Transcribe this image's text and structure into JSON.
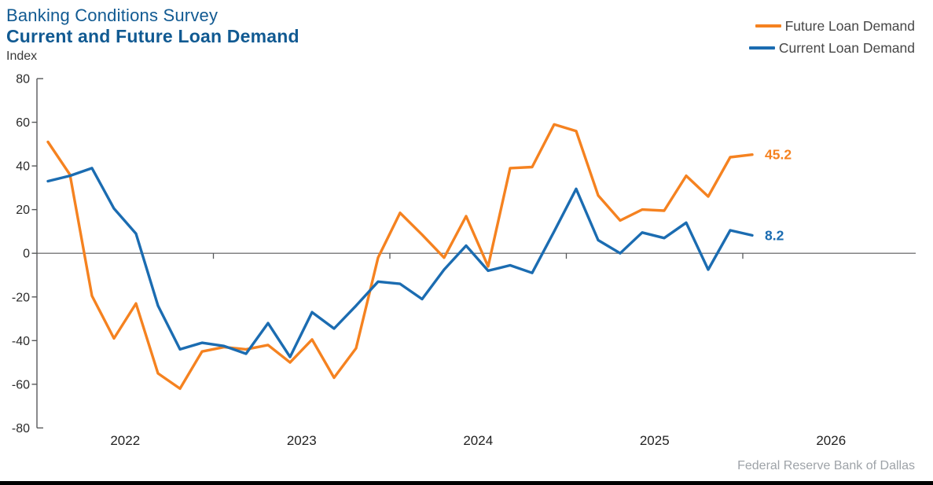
{
  "header": {
    "title": "Banking Conditions Survey",
    "subtitle": "Current and Future Loan Demand",
    "unit_label": "Index"
  },
  "legend": {
    "items": [
      {
        "label": "Future Loan Demand",
        "color": "#f58220"
      },
      {
        "label": "Current Loan Demand",
        "color": "#1b6cb1"
      }
    ]
  },
  "footer": {
    "source": "Federal Reserve Bank of Dallas"
  },
  "colors": {
    "title": "#115a92",
    "axis": "#58595b",
    "footer_text": "#9ea3a8",
    "future_series": "#f58220",
    "current_series": "#1b6cb1"
  },
  "chart_data": {
    "type": "line",
    "title": "Banking Conditions Survey",
    "subtitle": "Current and Future Loan Demand",
    "ylabel": "Index",
    "ylim": [
      -80,
      80
    ],
    "ytick_step": 20,
    "y_ticks": [
      80,
      60,
      40,
      20,
      0,
      -20,
      -40,
      -60,
      -80
    ],
    "x_tick_labels": [
      "2022",
      "2023",
      "2024",
      "2025",
      "2026"
    ],
    "points_per_year": 8,
    "grid": "off",
    "legend_position": "top-right",
    "source": "Federal Reserve Bank of Dallas",
    "series": [
      {
        "name": "Future Loan Demand",
        "color": "#f58220",
        "end_label": "45.2",
        "values": [
          51,
          36,
          -19.5,
          -39,
          -23,
          -55,
          -62,
          -45,
          -43,
          -44,
          -42,
          -50,
          -39.5,
          -57,
          -43.5,
          -2,
          18.5,
          8.5,
          -2,
          17,
          -6,
          39,
          39.5,
          59,
          56,
          26.5,
          15,
          20,
          19.5,
          35.5,
          26,
          44,
          45.2
        ]
      },
      {
        "name": "Current Loan Demand",
        "color": "#1b6cb1",
        "end_label": "8.2",
        "values": [
          33,
          35.5,
          39,
          20.5,
          9,
          -24,
          -44,
          -41,
          -42.5,
          -46,
          -32,
          -47.5,
          -27,
          -34.5,
          -24,
          -13,
          -14,
          -21,
          -7.5,
          3.5,
          -8,
          -5.5,
          -9,
          10,
          29.5,
          6,
          0,
          9.5,
          7,
          14,
          -7.5,
          10.5,
          8.2
        ]
      }
    ]
  }
}
